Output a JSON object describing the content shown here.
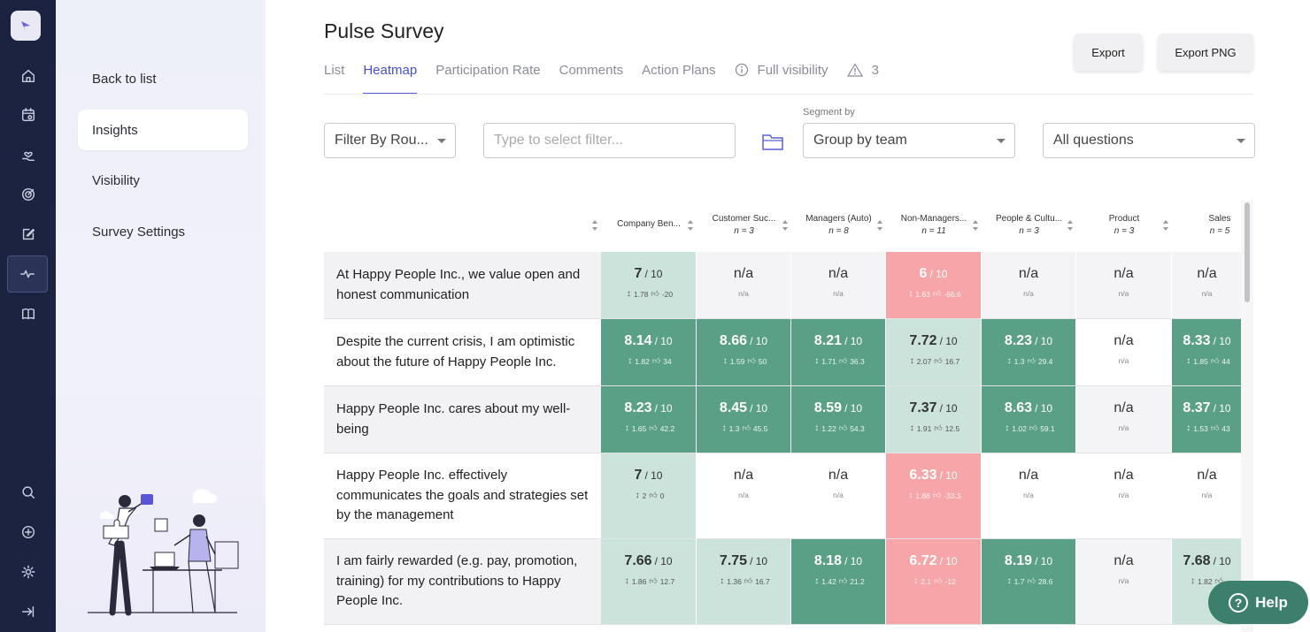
{
  "sidebar": {
    "items": [
      {
        "label": "Back to list"
      },
      {
        "label": "Insights"
      },
      {
        "label": "Visibility"
      },
      {
        "label": "Survey Settings"
      }
    ]
  },
  "rail": {
    "icons": [
      "home-icon",
      "calendar-icon",
      "hand-heart-icon",
      "target-icon",
      "edit-icon",
      "pulse-icon",
      "book-icon",
      "search-icon",
      "plus-icon",
      "gear-icon",
      "logout-icon"
    ]
  },
  "header": {
    "title": "Pulse Survey",
    "tabs": [
      {
        "label": "List"
      },
      {
        "label": "Heatmap"
      },
      {
        "label": "Participation Rate"
      },
      {
        "label": "Comments"
      },
      {
        "label": "Action Plans"
      },
      {
        "label": "Full visibility"
      },
      {
        "label": "3"
      }
    ],
    "export_label": "Export",
    "export_png_label": "Export PNG"
  },
  "filters": {
    "round": "Filter By Rou...",
    "filter_placeholder": "Type to select filter...",
    "segment_label": "Segment by",
    "segment_value": "Group by team",
    "questions_value": "All questions"
  },
  "table": {
    "columns": [
      {
        "label": "Company Ben...",
        "n": ""
      },
      {
        "label": "Customer Suc...",
        "n": "n = 3"
      },
      {
        "label": "Managers (Auto)",
        "n": "n = 8"
      },
      {
        "label": "Non-Managers...",
        "n": "n = 11"
      },
      {
        "label": "People & Cultu...",
        "n": "n = 3"
      },
      {
        "label": "Product",
        "n": "n = 3"
      },
      {
        "label": "Sales",
        "n": "n = 5"
      }
    ],
    "rows": [
      {
        "question": "At Happy People Inc., we value open and honest communication",
        "cells": [
          {
            "score": "7",
            "of": "/ 10",
            "sd": "1.78",
            "delta": "-20",
            "tone": "light"
          },
          {
            "score": "n/a",
            "sub": "n/a",
            "tone": "na"
          },
          {
            "score": "n/a",
            "sub": "n/a",
            "tone": "na"
          },
          {
            "score": "6",
            "of": "/ 10",
            "sd": "1.63",
            "delta": "-66.6",
            "tone": "red"
          },
          {
            "score": "n/a",
            "sub": "n/a",
            "tone": "na"
          },
          {
            "score": "n/a",
            "sub": "n/a",
            "tone": "na"
          },
          {
            "score": "n/a",
            "sub": "n/a",
            "tone": "na"
          }
        ]
      },
      {
        "question": "Despite the current crisis, I am optimistic about the future of Happy People Inc.",
        "cells": [
          {
            "score": "8.14",
            "of": "/ 10",
            "sd": "1.82",
            "delta": "34",
            "tone": "dark"
          },
          {
            "score": "8.66",
            "of": "/ 10",
            "sd": "1.59",
            "delta": "50",
            "tone": "dark"
          },
          {
            "score": "8.21",
            "of": "/ 10",
            "sd": "1.71",
            "delta": "36.3",
            "tone": "dark"
          },
          {
            "score": "7.72",
            "of": "/ 10",
            "sd": "2.07",
            "delta": "16.7",
            "tone": "light"
          },
          {
            "score": "8.23",
            "of": "/ 10",
            "sd": "1.3",
            "delta": "29.4",
            "tone": "dark"
          },
          {
            "score": "n/a",
            "sub": "n/a",
            "tone": "na"
          },
          {
            "score": "8.33",
            "of": "/ 10",
            "sd": "1.85",
            "delta": "44",
            "tone": "dark"
          }
        ]
      },
      {
        "question": "Happy People Inc. cares about my well-being",
        "cells": [
          {
            "score": "8.23",
            "of": "/ 10",
            "sd": "1.65",
            "delta": "42.2",
            "tone": "dark"
          },
          {
            "score": "8.45",
            "of": "/ 10",
            "sd": "1.3",
            "delta": "45.5",
            "tone": "dark"
          },
          {
            "score": "8.59",
            "of": "/ 10",
            "sd": "1.22",
            "delta": "54.3",
            "tone": "dark"
          },
          {
            "score": "7.37",
            "of": "/ 10",
            "sd": "1.91",
            "delta": "12.5",
            "tone": "light"
          },
          {
            "score": "8.63",
            "of": "/ 10",
            "sd": "1.02",
            "delta": "59.1",
            "tone": "dark"
          },
          {
            "score": "n/a",
            "sub": "n/a",
            "tone": "na"
          },
          {
            "score": "8.37",
            "of": "/ 10",
            "sd": "1.53",
            "delta": "43",
            "tone": "dark"
          }
        ]
      },
      {
        "question": "Happy People Inc. effectively communicates the goals and strategies set by the management",
        "cells": [
          {
            "score": "7",
            "of": "/ 10",
            "sd": "2",
            "delta": "0",
            "tone": "light"
          },
          {
            "score": "n/a",
            "sub": "n/a",
            "tone": "na"
          },
          {
            "score": "n/a",
            "sub": "n/a",
            "tone": "na"
          },
          {
            "score": "6.33",
            "of": "/ 10",
            "sd": "1.88",
            "delta": "-33.3",
            "tone": "red"
          },
          {
            "score": "n/a",
            "sub": "n/a",
            "tone": "na"
          },
          {
            "score": "n/a",
            "sub": "n/a",
            "tone": "na"
          },
          {
            "score": "n/a",
            "sub": "n/a",
            "tone": "na"
          }
        ]
      },
      {
        "question": "I am fairly rewarded (e.g. pay, promotion, training) for my contributions to Happy People Inc.",
        "cells": [
          {
            "score": "7.66",
            "of": "/ 10",
            "sd": "1.86",
            "delta": "12.7",
            "tone": "light"
          },
          {
            "score": "7.75",
            "of": "/ 10",
            "sd": "1.36",
            "delta": "16.7",
            "tone": "light"
          },
          {
            "score": "8.18",
            "of": "/ 10",
            "sd": "1.42",
            "delta": "21.2",
            "tone": "dark"
          },
          {
            "score": "6.72",
            "of": "/ 10",
            "sd": "2.1",
            "delta": "-12",
            "tone": "red"
          },
          {
            "score": "8.19",
            "of": "/ 10",
            "sd": "1.7",
            "delta": "28.6",
            "tone": "dark"
          },
          {
            "score": "n/a",
            "sub": "n/a",
            "tone": "na"
          },
          {
            "score": "7.68",
            "of": "/ 10",
            "sd": "1.82",
            "delta": "",
            "tone": "light"
          }
        ]
      }
    ]
  },
  "help_label": "Help",
  "colors": {
    "accent": "#5b5fd6",
    "dark": "#5aa086",
    "light": "#cbe3da",
    "red": "#f6a6a8",
    "rail": "#1c2340",
    "help": "#3c7f6c"
  }
}
